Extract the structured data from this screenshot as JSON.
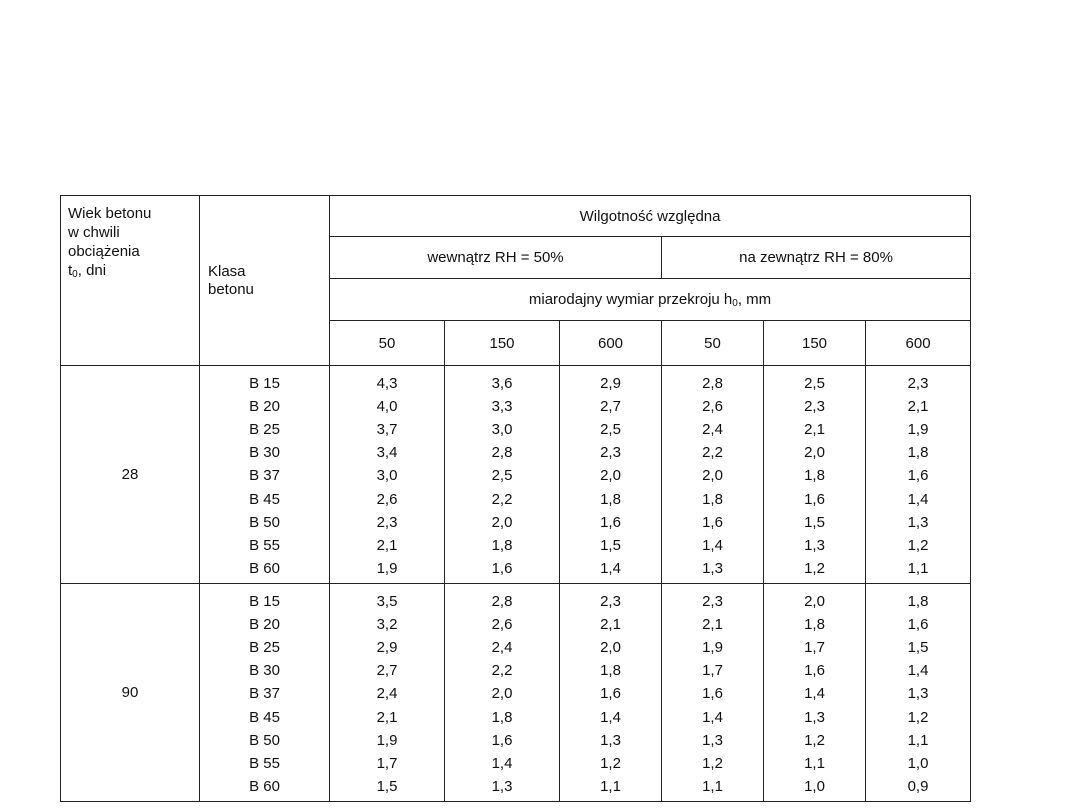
{
  "table": {
    "header": {
      "age_col": [
        "Wiek betonu",
        "w chwili",
        "obciążenia",
        "t",
        "0",
        ", dni"
      ],
      "class_col": [
        "Klasa",
        "betonu"
      ],
      "humidity": "Wilgotność względna",
      "inside": "wewnątrz RH = 50%",
      "outside": "na zewnątrz RH = 80%",
      "dimension": "miarodajny wymiar przekroju h",
      "dimension_sub": "0",
      "dimension_unit": ", mm",
      "sizes": [
        "50",
        "150",
        "600",
        "50",
        "150",
        "600"
      ]
    },
    "groups": [
      {
        "age": "28",
        "classes": [
          "B 15",
          "B 20",
          "B 25",
          "B 30",
          "B 37",
          "B 45",
          "B 50",
          "B 55",
          "B 60"
        ],
        "columns": [
          [
            "4,3",
            "4,0",
            "3,7",
            "3,4",
            "3,0",
            "2,6",
            "2,3",
            "2,1",
            "1,9"
          ],
          [
            "3,6",
            "3,3",
            "3,0",
            "2,8",
            "2,5",
            "2,2",
            "2,0",
            "1,8",
            "1,6"
          ],
          [
            "2,9",
            "2,7",
            "2,5",
            "2,3",
            "2,0",
            "1,8",
            "1,6",
            "1,5",
            "1,4"
          ],
          [
            "2,8",
            "2,6",
            "2,4",
            "2,2",
            "2,0",
            "1,8",
            "1,6",
            "1,4",
            "1,3"
          ],
          [
            "2,5",
            "2,3",
            "2,1",
            "2,0",
            "1,8",
            "1,6",
            "1,5",
            "1,3",
            "1,2"
          ],
          [
            "2,3",
            "2,1",
            "1,9",
            "1,8",
            "1,6",
            "1,4",
            "1,3",
            "1,2",
            "1,1"
          ]
        ]
      },
      {
        "age": "90",
        "classes": [
          "B 15",
          "B 20",
          "B 25",
          "B 30",
          "B 37",
          "B 45",
          "B 50",
          "B 55",
          "B 60"
        ],
        "columns": [
          [
            "3,5",
            "3,2",
            "2,9",
            "2,7",
            "2,4",
            "2,1",
            "1,9",
            "1,7",
            "1,5"
          ],
          [
            "2,8",
            "2,6",
            "2,4",
            "2,2",
            "2,0",
            "1,8",
            "1,6",
            "1,4",
            "1,3"
          ],
          [
            "2,3",
            "2,1",
            "2,0",
            "1,8",
            "1,6",
            "1,4",
            "1,3",
            "1,2",
            "1,1"
          ],
          [
            "2,3",
            "2,1",
            "1,9",
            "1,7",
            "1,6",
            "1,4",
            "1,3",
            "1,2",
            "1,1"
          ],
          [
            "2,0",
            "1,8",
            "1,7",
            "1,6",
            "1,4",
            "1,3",
            "1,2",
            "1,1",
            "1,0"
          ],
          [
            "1,8",
            "1,6",
            "1,5",
            "1,4",
            "1,3",
            "1,2",
            "1,1",
            "1,0",
            "0,9"
          ]
        ]
      }
    ]
  }
}
